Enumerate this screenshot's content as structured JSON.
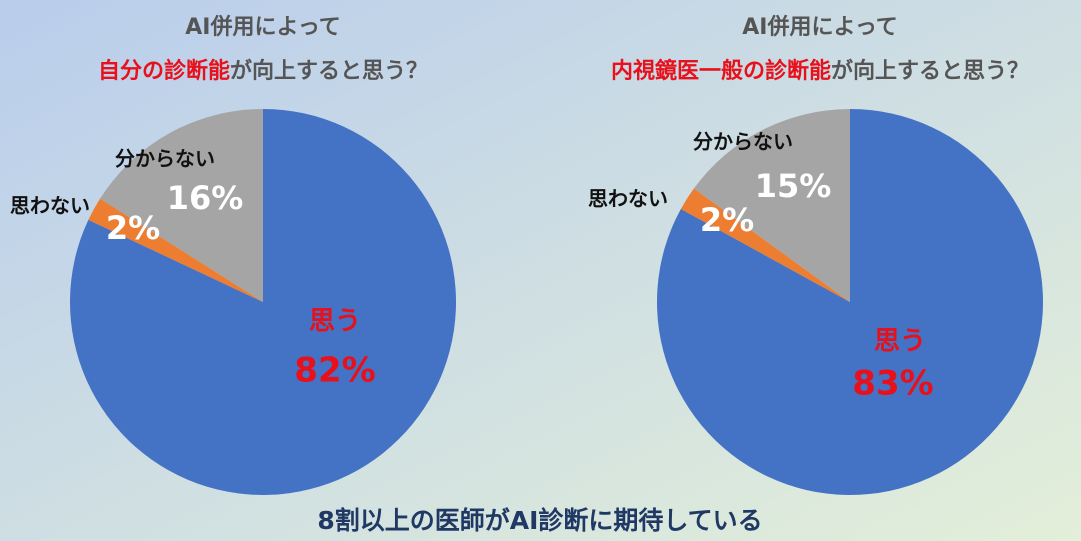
{
  "chart_data": [
    {
      "type": "pie",
      "title": "AI併用によって",
      "subtitle": [
        {
          "text": "自分の診断能",
          "color": "#e8101a"
        },
        {
          "text": "が向上すると思う？",
          "color": "#555555"
        }
      ],
      "categories": [
        "思う",
        "思わない",
        "分からない"
      ],
      "values": [
        82,
        2,
        16
      ],
      "value_labels": [
        "82%",
        "2%",
        "16%"
      ],
      "colors": [
        "#4472c4",
        "#ed7d31",
        "#a5a5a5"
      ]
    },
    {
      "type": "pie",
      "title": "AI併用によって",
      "subtitle": [
        {
          "text": "内視鏡医一般の診断能",
          "color": "#e8101a"
        },
        {
          "text": "が向上すると思う？",
          "color": "#555555"
        }
      ],
      "categories": [
        "思う",
        "思わない",
        "分からない"
      ],
      "values": [
        83,
        2,
        15
      ],
      "value_labels": [
        "83%",
        "2%",
        "15%"
      ],
      "colors": [
        "#4472c4",
        "#ed7d31",
        "#a5a5a5"
      ]
    }
  ],
  "caption": "8割以上の医師がAI診断に期待している"
}
